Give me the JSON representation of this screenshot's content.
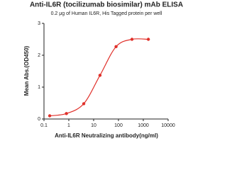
{
  "chart_data": {
    "type": "line",
    "title": "Anti-IL6R (tocilizumab biosimilar) mAb ELISA",
    "subtitle": "0.2 μg of Human IL6R, His Tagged protein per well",
    "x_label": "Anti-IL6R Neutralizing antibody(ng/ml)",
    "y_label": "Mean Abs.(OD450)",
    "x": [
      0.17,
      0.8,
      4,
      18,
      80,
      350,
      1600
    ],
    "series": [
      {
        "color": "#e0302a",
        "values": [
          0.1,
          0.17,
          0.48,
          1.37,
          2.27,
          2.5,
          2.5
        ]
      }
    ],
    "xscale": "log",
    "xlim": [
      0.1,
      10000
    ],
    "xticks": [
      0.1,
      1,
      10,
      100,
      1000,
      10000
    ],
    "ylim": [
      0,
      3
    ],
    "yticks": [
      0,
      1,
      2,
      3
    ]
  }
}
